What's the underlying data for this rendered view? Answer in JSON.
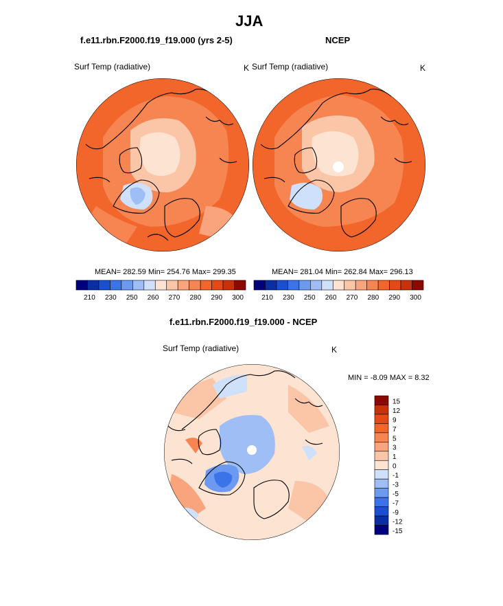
{
  "main_title": "JJA",
  "panel_left": {
    "case_title": "f.e11.rbn.F2000.f19_f19.000 (yrs 2-5)",
    "variable": "Surf Temp (radiative)",
    "units": "K",
    "stats": "MEAN= 282.59  Min= 254.76  Max= 299.35"
  },
  "panel_right": {
    "case_title": "NCEP",
    "variable": "Surf Temp (radiative)",
    "units": "K",
    "stats": "MEAN= 281.04  Min= 262.84  Max= 296.13"
  },
  "panel_diff": {
    "case_title": "f.e11.rbn.F2000.f19_f19.000 - NCEP",
    "variable": "Surf Temp (radiative)",
    "units": "K",
    "stats": "MIN =  -8.09 MAX =   8.32"
  },
  "colorbar_abs": {
    "tick_labels": [
      "210",
      "230",
      "250",
      "260",
      "270",
      "280",
      "290",
      "300"
    ],
    "colors": [
      "#00007f",
      "#0a2fa5",
      "#1a4fd0",
      "#3a74e8",
      "#6b9af0",
      "#9fbef5",
      "#cfe0fa",
      "#fde3d2",
      "#fbc6a8",
      "#f9a47c",
      "#f68552",
      "#f2652b",
      "#e44a16",
      "#c7320b",
      "#8b0a00"
    ]
  },
  "colorbar_diff": {
    "tick_labels": [
      "15",
      "12",
      "9",
      "7",
      "5",
      "3",
      "1",
      "0",
      "-1",
      "-3",
      "-5",
      "-7",
      "-9",
      "-12",
      "-15"
    ],
    "colors": [
      "#8b0a00",
      "#c7320b",
      "#e44a16",
      "#f2652b",
      "#f68552",
      "#f9a47c",
      "#fbc6a8",
      "#fde3d2",
      "#cfe0fa",
      "#9fbef5",
      "#6b9af0",
      "#3a74e8",
      "#1a4fd0",
      "#0a2fa5",
      "#00007f"
    ]
  },
  "map_colors": {
    "warm_dark": "#f2652b",
    "warm_mid": "#f68552",
    "warm_light": "#f9a47c",
    "pale": "#fde3d2",
    "paler": "#fbc6a8",
    "cold_light": "#cfe0fa",
    "cold_mid": "#9fbef5",
    "cold_dark": "#3a74e8",
    "missing": "#ffffff",
    "coast": "#000000"
  }
}
